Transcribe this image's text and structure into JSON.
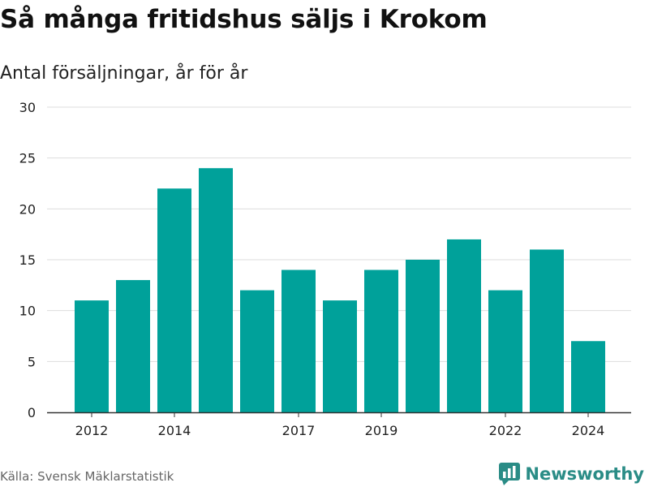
{
  "header": {
    "title": "Så många fritidshus säljs i Krokom",
    "subtitle": "Antal försäljningar, år för år"
  },
  "footer": {
    "source": "Källa: Svensk Mäklarstatistik",
    "brand": "Newsworthy",
    "brand_icon": "bar-chart-logo-icon"
  },
  "colors": {
    "bar": "#00a19a",
    "grid": "#dddddd",
    "axis": "#333333",
    "brand": "#2a8c86"
  },
  "chart_data": {
    "type": "bar",
    "categories": [
      "2012",
      "2013",
      "2014",
      "2015",
      "2016",
      "2017",
      "2018",
      "2019",
      "2020",
      "2021",
      "2022",
      "2023",
      "2024"
    ],
    "values": [
      11,
      13,
      22,
      24,
      12,
      14,
      11,
      14,
      15,
      17,
      12,
      16,
      7
    ],
    "x_tick_labels": [
      "2012",
      "2014",
      "2017",
      "2019",
      "2022",
      "2024"
    ],
    "y_ticks": [
      0,
      5,
      10,
      15,
      20,
      25,
      30
    ],
    "ylim": [
      0,
      30
    ],
    "grid": true,
    "legend": "none"
  }
}
